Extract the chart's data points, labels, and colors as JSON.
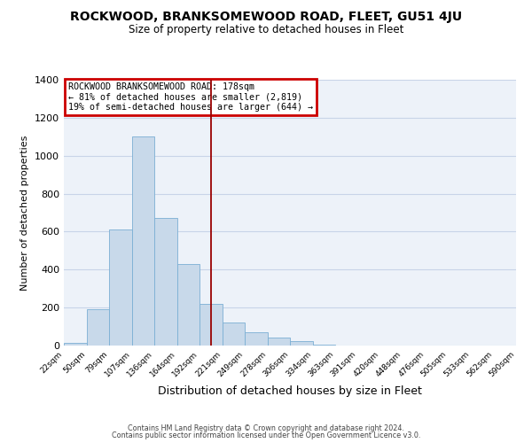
{
  "title": "ROCKWOOD, BRANKSOMEWOOD ROAD, FLEET, GU51 4JU",
  "subtitle": "Size of property relative to detached houses in Fleet",
  "xlabel": "Distribution of detached houses by size in Fleet",
  "ylabel": "Number of detached properties",
  "bar_color": "#c8d9ea",
  "bar_edge_color": "#7bafd4",
  "bins": [
    "22sqm",
    "50sqm",
    "79sqm",
    "107sqm",
    "136sqm",
    "164sqm",
    "192sqm",
    "221sqm",
    "249sqm",
    "278sqm",
    "306sqm",
    "334sqm",
    "363sqm",
    "391sqm",
    "420sqm",
    "448sqm",
    "476sqm",
    "505sqm",
    "533sqm",
    "562sqm",
    "590sqm"
  ],
  "values": [
    15,
    190,
    610,
    1100,
    670,
    430,
    220,
    120,
    70,
    40,
    25,
    5,
    0,
    0,
    0,
    0,
    0,
    0,
    0,
    0
  ],
  "ylim": [
    0,
    1400
  ],
  "yticks": [
    0,
    200,
    400,
    600,
    800,
    1000,
    1200,
    1400
  ],
  "vline_x": 6.0,
  "vline_color": "#990000",
  "annotation_title": "ROCKWOOD BRANKSOMEWOOD ROAD: 178sqm",
  "annotation_line1": "← 81% of detached houses are smaller (2,819)",
  "annotation_line2": "19% of semi-detached houses are larger (644) →",
  "annotation_box_color": "#ffffff",
  "annotation_box_edge": "#cc0000",
  "footer1": "Contains HM Land Registry data © Crown copyright and database right 2024.",
  "footer2": "Contains public sector information licensed under the Open Government Licence v3.0.",
  "background_color": "#edf2f9",
  "plot_background": "#ffffff",
  "grid_color": "#c8d4e8"
}
